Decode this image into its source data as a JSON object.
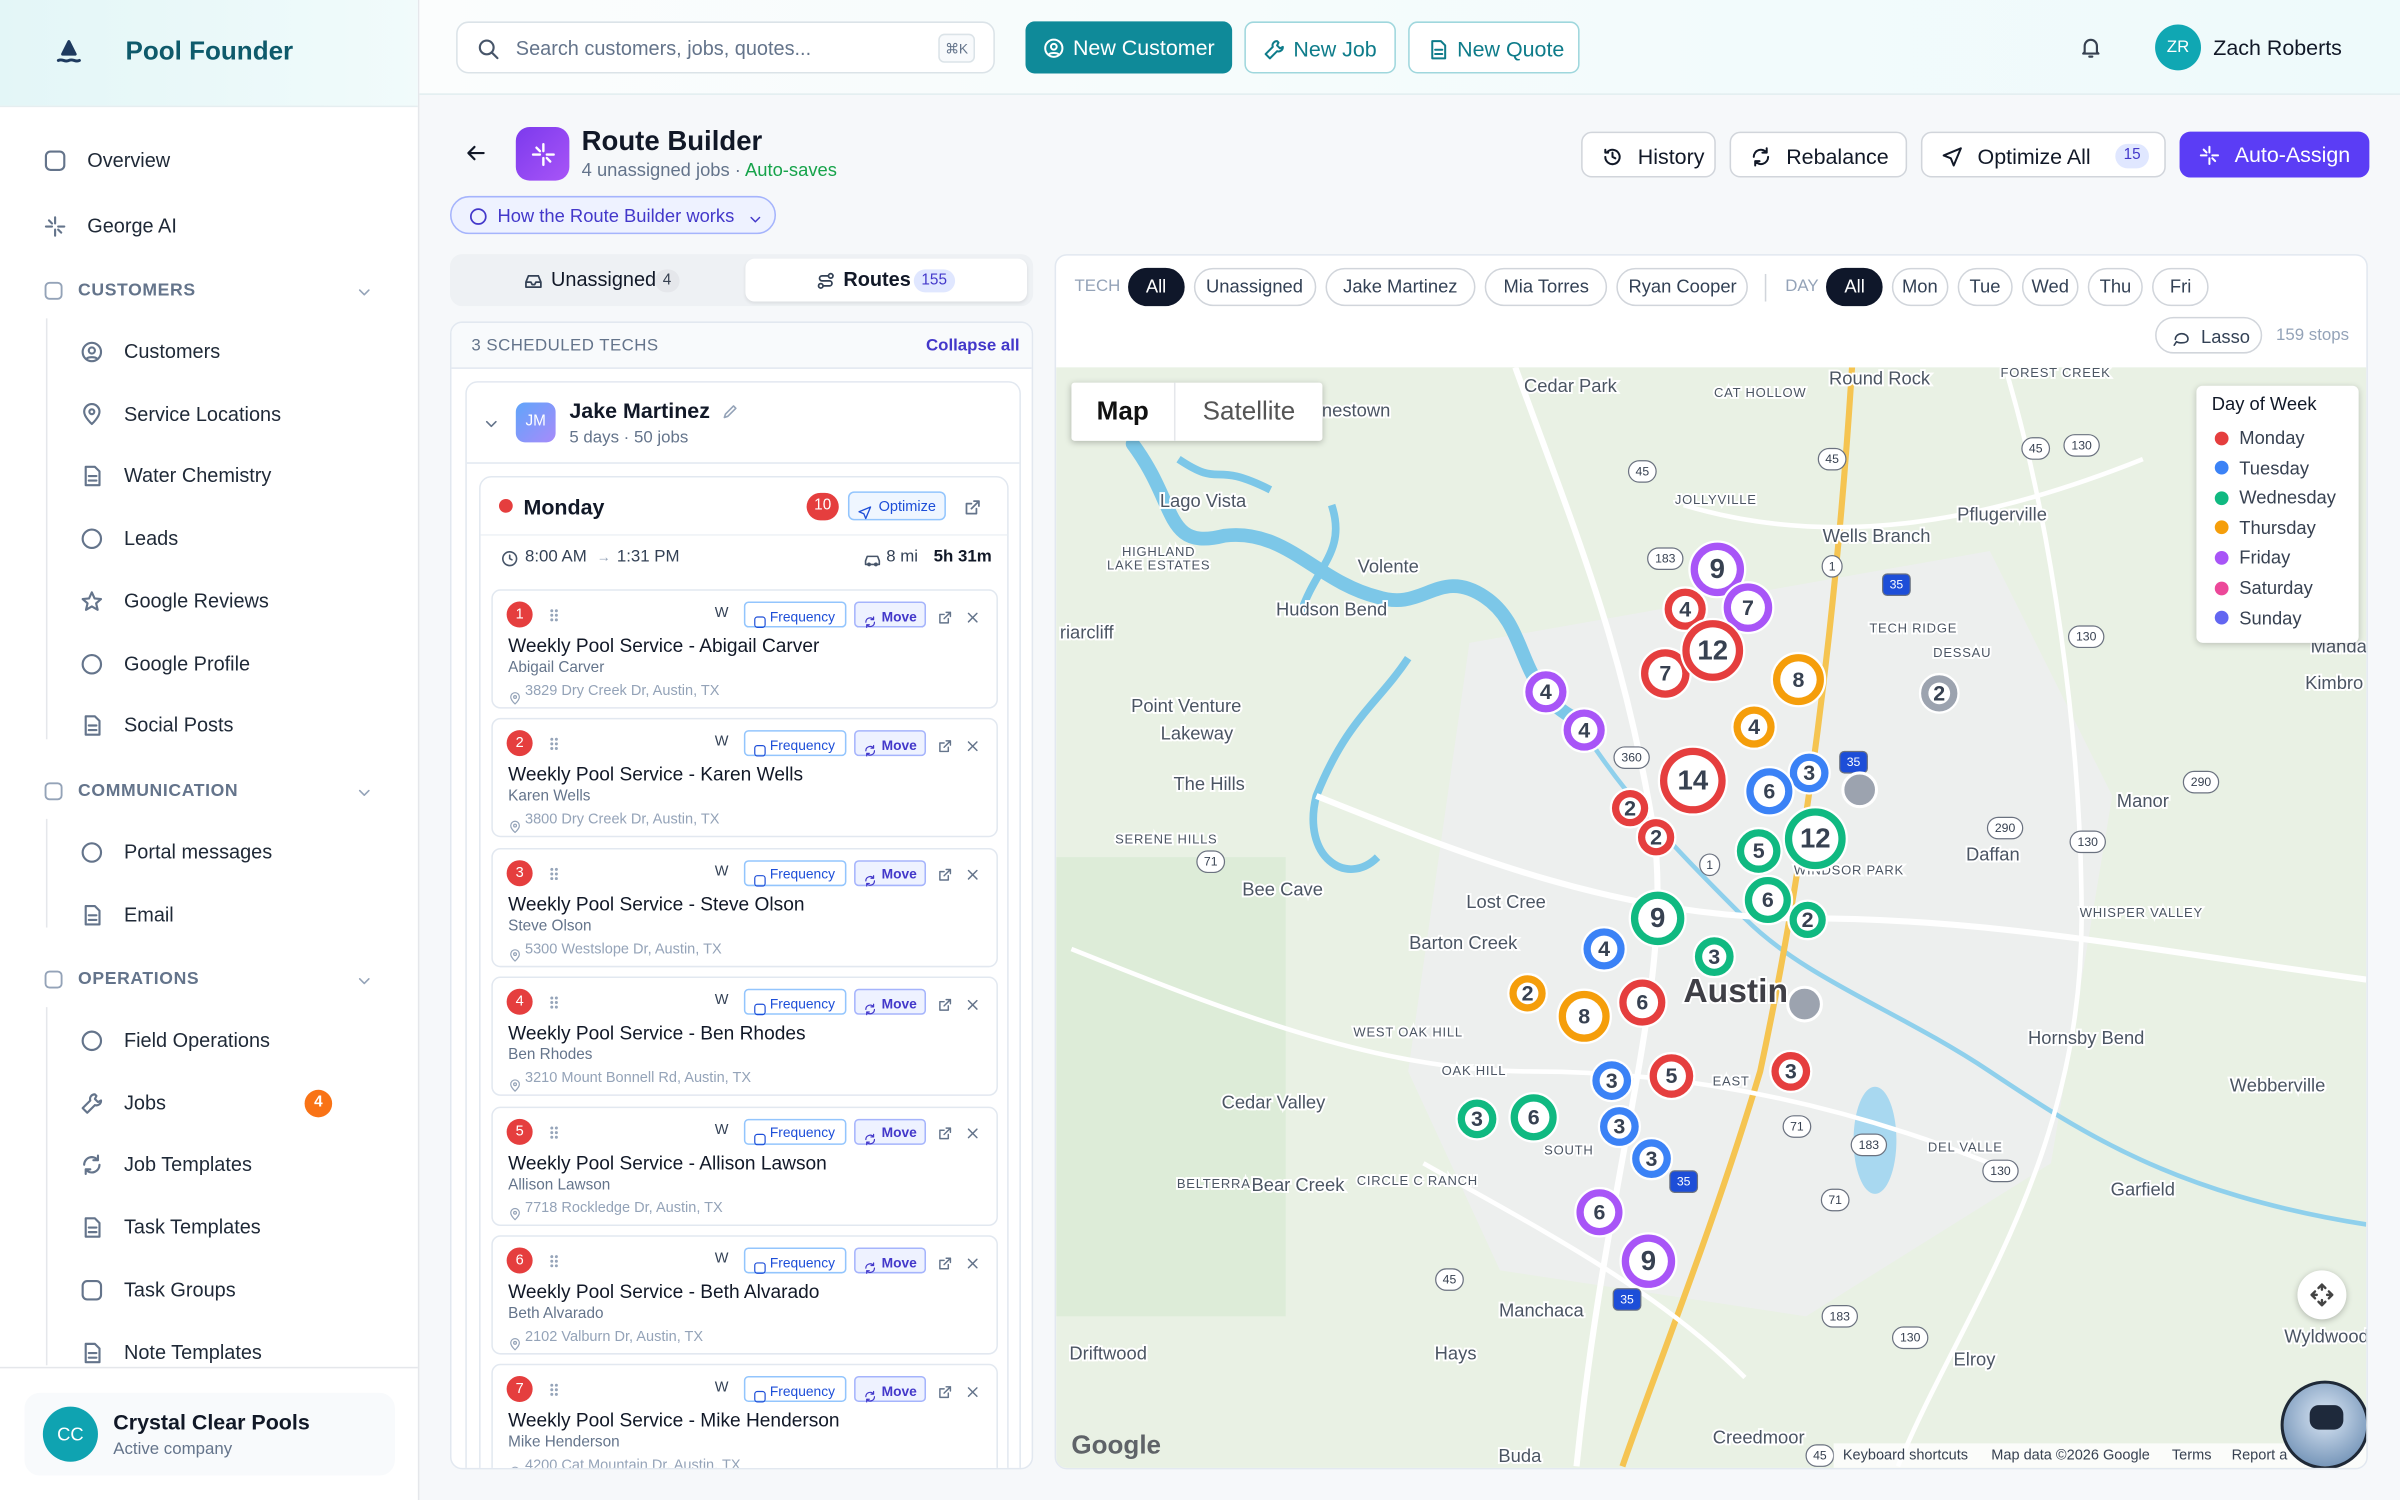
{
  "sidebar": {
    "brand": "Pool Founder",
    "top": [
      "Overview",
      "George AI"
    ],
    "sections": [
      {
        "title": "CUSTOMERS",
        "items": [
          {
            "label": "Customers"
          },
          {
            "label": "Service Locations"
          },
          {
            "label": "Water Chemistry"
          },
          {
            "label": "Leads"
          },
          {
            "label": "Google Reviews"
          },
          {
            "label": "Google Profile"
          },
          {
            "label": "Social Posts"
          }
        ]
      },
      {
        "title": "COMMUNICATION",
        "items": [
          {
            "label": "Portal messages"
          },
          {
            "label": "Email"
          }
        ]
      },
      {
        "title": "OPERATIONS",
        "items": [
          {
            "label": "Field Operations"
          },
          {
            "label": "Jobs",
            "badge": 4
          },
          {
            "label": "Job Templates"
          },
          {
            "label": "Task Templates"
          },
          {
            "label": "Task Groups"
          },
          {
            "label": "Note Templates"
          }
        ]
      }
    ],
    "company": {
      "initials": "CC",
      "name": "Crystal Clear Pools",
      "status": "Active company"
    }
  },
  "topbar": {
    "search": "Search customers, jobs, quotes...",
    "shortcut": "⌘K",
    "buttons": [
      "New Customer",
      "New Job",
      "New Quote"
    ],
    "user": {
      "initials": "ZR",
      "name": "Zach Roberts"
    }
  },
  "header": {
    "title": "Route Builder",
    "subtitle": "4 unassigned jobs ·",
    "autosave": "Auto-saves",
    "help": "How the Route Builder works",
    "actions": [
      "History",
      "Rebalance",
      "Optimize All",
      "Auto-Assign"
    ],
    "optimize_badge": 15
  },
  "tabs": [
    {
      "label": "Unassigned",
      "count": 4
    },
    {
      "label": "Routes",
      "count": 155
    }
  ],
  "techs": {
    "count_label": "3 SCHEDULED TECHS",
    "collapse": "Collapse all",
    "initials": "JM",
    "name": "Jake Martinez",
    "meta": "5 days · 50 jobs",
    "day": {
      "name": "Monday",
      "count": 10,
      "optimize": "Optimize",
      "start": "8:00 AM",
      "arrow": "→",
      "end": "1:31 PM",
      "distance": "8 mi",
      "duration": "5h 31m",
      "freq_code": "W",
      "freq_btn": "Frequency",
      "move_btn": "Move",
      "jobs": [
        {
          "number": 1,
          "title": "Weekly Pool Service - Abigail Carver",
          "customer": "Abigail Carver",
          "address": "3829 Dry Creek Dr, Austin, TX"
        },
        {
          "number": 2,
          "title": "Weekly Pool Service - Karen Wells",
          "customer": "Karen Wells",
          "address": "3800 Dry Creek Dr, Austin, TX"
        },
        {
          "number": 3,
          "title": "Weekly Pool Service - Steve Olson",
          "customer": "Steve Olson",
          "address": "5300 Westslope Dr, Austin, TX"
        },
        {
          "number": 4,
          "title": "Weekly Pool Service - Ben Rhodes",
          "customer": "Ben Rhodes",
          "address": "3210 Mount Bonnell Rd, Austin, TX"
        },
        {
          "number": 5,
          "title": "Weekly Pool Service - Allison Lawson",
          "customer": "Allison Lawson",
          "address": "7718 Rockledge Dr, Austin, TX"
        },
        {
          "number": 6,
          "title": "Weekly Pool Service - Beth Alvarado",
          "customer": "Beth Alvarado",
          "address": "2102 Valburn Dr, Austin, TX"
        },
        {
          "number": 7,
          "title": "Weekly Pool Service - Mike Henderson",
          "customer": "Mike Henderson",
          "address": "4200 Cat Mountain Dr, Austin, TX"
        }
      ]
    }
  },
  "map": {
    "tech_label": "TECH",
    "tech_filters": [
      "All",
      "Unassigned",
      "Jake Martinez",
      "Mia Torres",
      "Ryan Cooper"
    ],
    "day_label": "DAY",
    "day_filters": [
      "All",
      "Mon",
      "Tue",
      "Wed",
      "Thu",
      "Fri"
    ],
    "lasso": "Lasso",
    "stops": "159 stops",
    "views": [
      "Map",
      "Satellite"
    ],
    "legend": {
      "title": "Day of Week",
      "items": [
        {
          "name": "Monday",
          "color": "#e53e3e"
        },
        {
          "name": "Tuesday",
          "color": "#3b82f6"
        },
        {
          "name": "Wednesday",
          "color": "#10b981"
        },
        {
          "name": "Thursday",
          "color": "#f59e0b"
        },
        {
          "name": "Friday",
          "color": "#a855f7"
        },
        {
          "name": "Saturday",
          "color": "#ec4899"
        },
        {
          "name": "Sunday",
          "color": "#6366f1"
        }
      ]
    },
    "places": [
      "Cedar Park",
      "Round Rock",
      "FOREST CREEK",
      "CAT HOLLOW",
      "nestown",
      "Lago Vista",
      "JOLLYVILLE",
      "Pflugerville",
      "HIGHLAND",
      "LAKE ESTATES",
      "Volente",
      "Wells Branch",
      "Hudson Bend",
      "TECH RIDGE",
      "DESSAU",
      "riarcliff",
      "Kimbro",
      "Manda",
      "Point Venture",
      "Lakeway",
      "The Hills",
      "Manor",
      "SERENE HILLS",
      "Daffan",
      "WINDSOR PARK",
      "Bee Cave",
      "Lost Cree",
      "WHISPER VALLEY",
      "Barton Creek",
      "Austin",
      "WEST OAK HILL",
      "Hornsby Bend",
      "OAK HILL",
      "EAST",
      "Webberville",
      "Cedar Valley",
      "DEL VALLE",
      "BELTERRA",
      "Bear Creek",
      "CIRCLE C RANCH",
      "SOUTH",
      "Garfield",
      "Manchaca",
      "Hays",
      "Driftwood",
      "Elroy",
      "Wyldwood",
      "Creedmoor",
      "Buda"
    ],
    "shields": [
      "45",
      "45",
      "45",
      "45",
      "45",
      "130",
      "130",
      "130",
      "130",
      "130",
      "183",
      "183",
      "183",
      "1",
      "1",
      "35",
      "35",
      "35",
      "35",
      "360",
      "71",
      "71",
      "71",
      "290",
      "290"
    ],
    "clusters": [
      {
        "count": 9,
        "color": "#a855f7"
      },
      {
        "count": 4,
        "color": "#e53e3e"
      },
      {
        "count": 7,
        "color": "#a855f7"
      },
      {
        "count": 7,
        "color": "#e53e3e"
      },
      {
        "count": 12,
        "color": "#e53e3e"
      },
      {
        "count": 8,
        "color": "#f59e0b"
      },
      {
        "count": 2,
        "color": "#9ca3af"
      },
      {
        "count": 4,
        "color": "#a855f7"
      },
      {
        "count": 4,
        "color": "#a855f7"
      },
      {
        "count": 4,
        "color": "#f59e0b"
      },
      {
        "count": 3,
        "color": "#3b82f6"
      },
      {
        "count": 14,
        "color": "#e53e3e"
      },
      {
        "count": 6,
        "color": "#3b82f6"
      },
      {
        "count": 2,
        "color": "#e53e3e"
      },
      {
        "count": 2,
        "color": "#e53e3e"
      },
      {
        "count": 5,
        "color": "#10b981"
      },
      {
        "count": 12,
        "color": "#10b981"
      },
      {
        "count": 2,
        "color": "#10b981"
      },
      {
        "count": 6,
        "color": "#10b981"
      },
      {
        "count": 9,
        "color": "#10b981"
      },
      {
        "count": 4,
        "color": "#3b82f6"
      },
      {
        "count": 3,
        "color": "#10b981"
      },
      {
        "count": 2,
        "color": "#f59e0b"
      },
      {
        "count": 8,
        "color": "#f59e0b"
      },
      {
        "count": 6,
        "color": "#e53e3e"
      },
      {
        "count": 5,
        "color": "#e53e3e"
      },
      {
        "count": 3,
        "color": "#3b82f6"
      },
      {
        "count": 3,
        "color": "#e53e3e"
      },
      {
        "count": 3,
        "color": "#10b981"
      },
      {
        "count": 6,
        "color": "#10b981"
      },
      {
        "count": 3,
        "color": "#3b82f6"
      },
      {
        "count": 3,
        "color": "#3b82f6"
      },
      {
        "count": 6,
        "color": "#a855f7"
      },
      {
        "count": 9,
        "color": "#a855f7"
      }
    ],
    "footer": [
      "Google",
      "Keyboard shortcuts",
      "Map data ©2026 Google",
      "Terms",
      "Report a"
    ]
  }
}
